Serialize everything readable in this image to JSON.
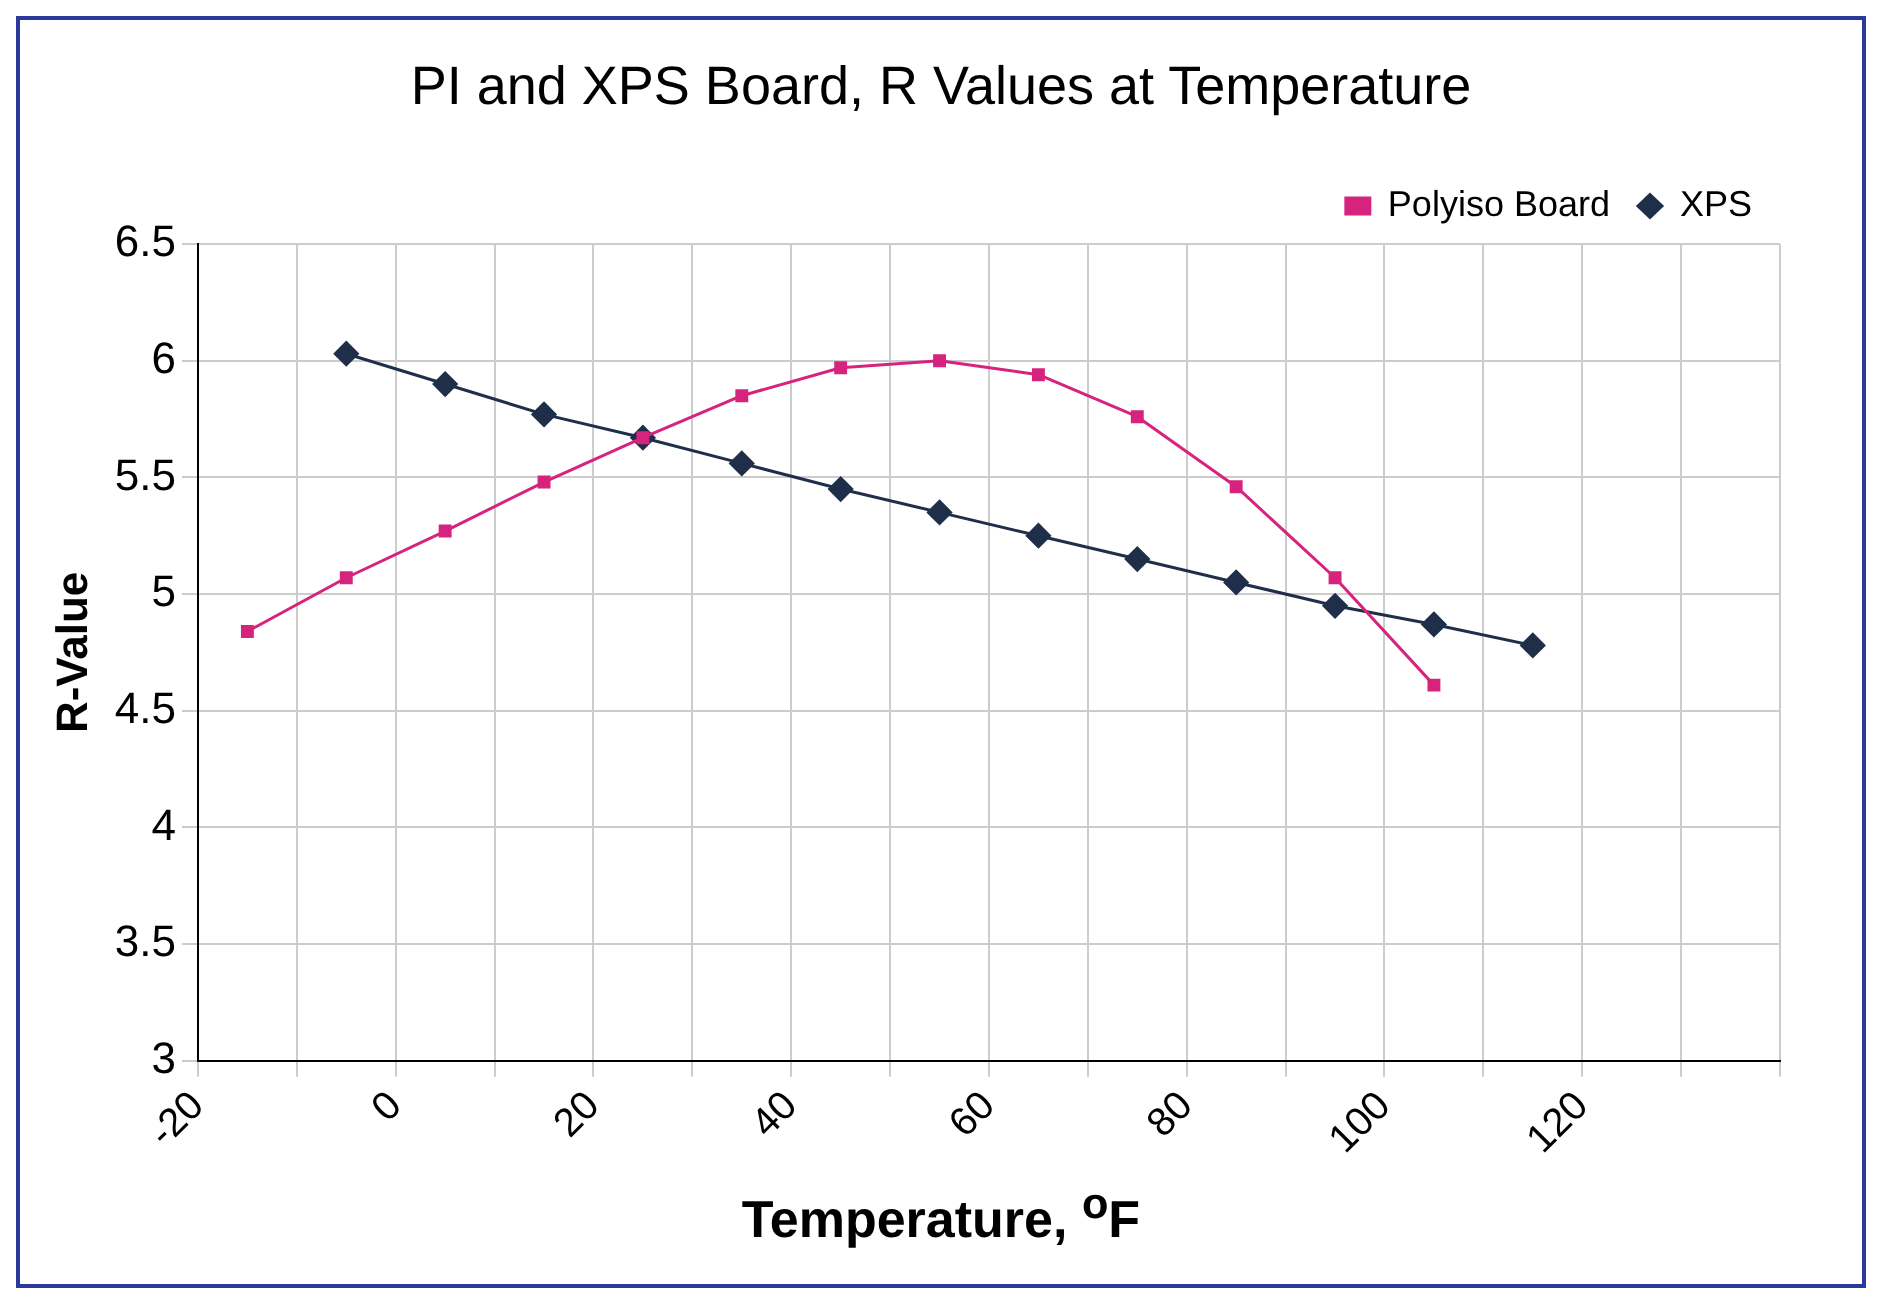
{
  "chart_data": {
    "type": "line",
    "title": "PI and XPS Board, R Values at Temperature",
    "xlabel": "Temperature, $^{o}$F",
    "ylabel": "R-Value",
    "series": [
      {
        "name": "Polyiso Board",
        "color": "#d6237e",
        "marker": "square",
        "x": [
          -15,
          -5,
          5,
          15,
          25,
          35,
          45,
          55,
          65,
          75,
          85,
          95,
          105
        ],
        "values": [
          4.84,
          5.07,
          5.27,
          5.48,
          5.67,
          5.85,
          5.97,
          6.0,
          5.94,
          5.76,
          5.46,
          5.07,
          4.61
        ]
      },
      {
        "name": "XPS",
        "color": "#1f2f4a",
        "marker": "diamond",
        "x": [
          -5,
          5,
          15,
          25,
          35,
          45,
          55,
          65,
          75,
          85,
          95,
          105,
          115
        ],
        "values": [
          6.03,
          5.9,
          5.77,
          5.67,
          5.56,
          5.45,
          5.35,
          5.25,
          5.15,
          5.05,
          4.95,
          4.87,
          4.78
        ]
      }
    ],
    "xlim": [
      -20,
      140
    ],
    "xticks": [
      -20,
      {
        "value": -10,
        "label": null
      },
      0,
      {
        "value": 10,
        "label": null
      },
      20,
      {
        "value": 30,
        "label": null
      },
      40,
      {
        "value": 50,
        "label": null
      },
      60,
      {
        "value": 70,
        "label": null
      },
      80,
      {
        "value": 90,
        "label": null
      },
      100,
      {
        "value": 110,
        "label": null
      },
      120,
      {
        "value": 130,
        "label": null
      },
      {
        "value": 140,
        "label": null
      }
    ],
    "ylim": [
      3,
      6.5
    ],
    "yticks": [
      3,
      3.5,
      4,
      4.5,
      5,
      5.5,
      6,
      6.5
    ],
    "grid": true,
    "legend": "top right",
    "line_style": "solid"
  }
}
